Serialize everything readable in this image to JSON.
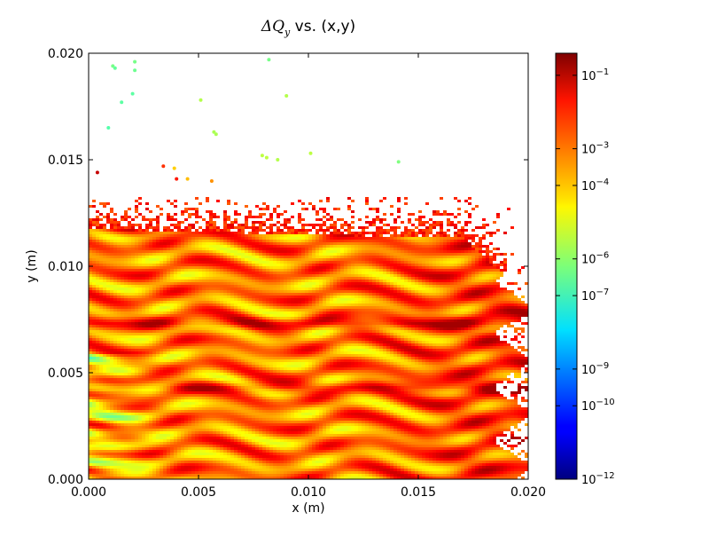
{
  "chart_data": {
    "type": "scatter",
    "title": {
      "delta_symbol": "Δ",
      "q_symbol": "Q",
      "subscript": "y",
      "suffix": " vs. (x,y)"
    },
    "xlabel": "x (m)",
    "ylabel": "y (m)",
    "xlim": [
      0.0,
      0.02
    ],
    "ylim": [
      0.0,
      0.02
    ],
    "x_ticks": [
      "0.000",
      "0.005",
      "0.010",
      "0.015",
      "0.020"
    ],
    "y_ticks": [
      "0.000",
      "0.005",
      "0.010",
      "0.015",
      "0.020"
    ],
    "grid": false,
    "colormap": "jet",
    "color_scale": "log",
    "colorbar": {
      "min_exp": -12,
      "max_exp": -0.4,
      "tick_labels": [
        {
          "base": "10",
          "exp": "−12",
          "value_exp": -12
        },
        {
          "base": "10",
          "exp": "−10",
          "value_exp": -10
        },
        {
          "base": "10",
          "exp": "−9",
          "value_exp": -9
        },
        {
          "base": "10",
          "exp": "−7",
          "value_exp": -7
        },
        {
          "base": "10",
          "exp": "−6",
          "value_exp": -6
        },
        {
          "base": "10",
          "exp": "−4",
          "value_exp": -4
        },
        {
          "base": "10",
          "exp": "−3",
          "value_exp": -3
        },
        {
          "base": "10",
          "exp": "−1",
          "value_exp": -1
        }
      ]
    },
    "sparse_points": [
      {
        "x": 0.0011,
        "y": 0.0194,
        "log10dq": -6.3
      },
      {
        "x": 0.0021,
        "y": 0.0196,
        "log10dq": -6.3
      },
      {
        "x": 0.0012,
        "y": 0.0193,
        "log10dq": -6.5
      },
      {
        "x": 0.0021,
        "y": 0.0192,
        "log10dq": -6.4
      },
      {
        "x": 0.002,
        "y": 0.0181,
        "log10dq": -6.6
      },
      {
        "x": 0.0015,
        "y": 0.0177,
        "log10dq": -6.6
      },
      {
        "x": 0.0009,
        "y": 0.0165,
        "log10dq": -6.7
      },
      {
        "x": 0.0051,
        "y": 0.0178,
        "log10dq": -5.6
      },
      {
        "x": 0.0082,
        "y": 0.0197,
        "log10dq": -6.3
      },
      {
        "x": 0.009,
        "y": 0.018,
        "log10dq": -5.6
      },
      {
        "x": 0.0057,
        "y": 0.0163,
        "log10dq": -5.7
      },
      {
        "x": 0.0058,
        "y": 0.0162,
        "log10dq": -5.7
      },
      {
        "x": 0.0079,
        "y": 0.0152,
        "log10dq": -5.5
      },
      {
        "x": 0.0081,
        "y": 0.0151,
        "log10dq": -5.5
      },
      {
        "x": 0.0086,
        "y": 0.015,
        "log10dq": -5.6
      },
      {
        "x": 0.0101,
        "y": 0.0153,
        "log10dq": -5.5
      },
      {
        "x": 0.0141,
        "y": 0.0149,
        "log10dq": -6.2
      },
      {
        "x": 0.0004,
        "y": 0.0144,
        "log10dq": -1.2
      },
      {
        "x": 0.0034,
        "y": 0.0147,
        "log10dq": -2.4
      },
      {
        "x": 0.0039,
        "y": 0.0146,
        "log10dq": -4.2
      },
      {
        "x": 0.004,
        "y": 0.0141,
        "log10dq": -2.1
      },
      {
        "x": 0.0045,
        "y": 0.0141,
        "log10dq": -4.0
      },
      {
        "x": 0.0056,
        "y": 0.014,
        "log10dq": -3.5
      }
    ],
    "bulk_region": {
      "x_range": [
        0.0,
        0.02
      ],
      "y_range": [
        0.0,
        0.0133
      ],
      "log10dq_typical_range": [
        -7,
        -1
      ],
      "description_bands_y": [
        0.0044,
        0.0074,
        0.0118
      ]
    }
  }
}
